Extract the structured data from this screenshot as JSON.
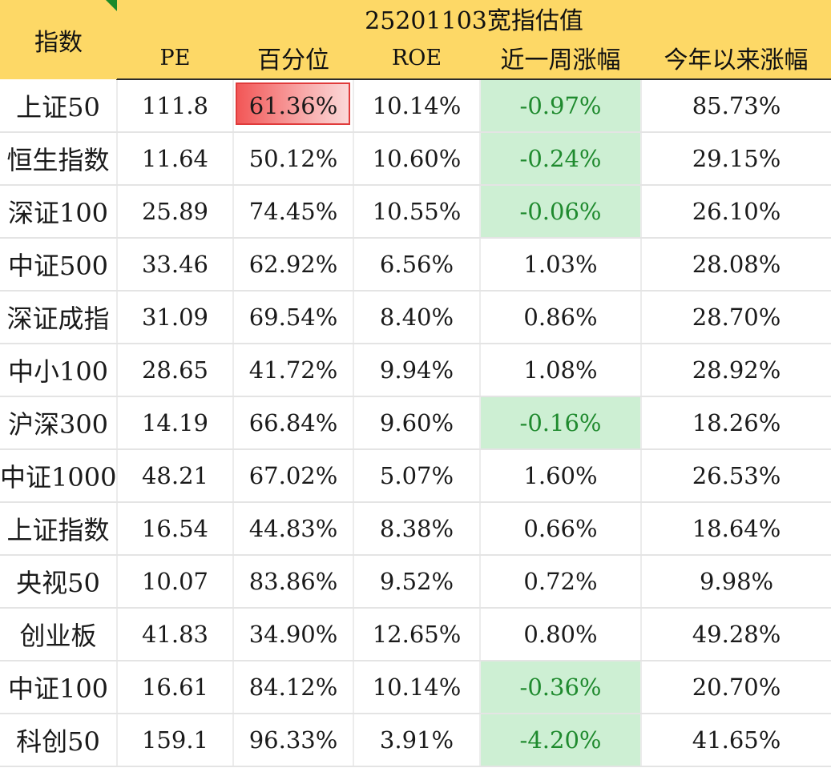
{
  "header": {
    "index_label": "指数",
    "title": "25201103宽指估值",
    "columns": [
      "PE",
      "百分位",
      "ROE",
      "近一周涨幅",
      "今年以来涨幅"
    ]
  },
  "colors": {
    "header_bg": "#fdd866",
    "negative_bg": "#cdefd3",
    "negative_text": "#1f8a2e",
    "highlight": "#f25757"
  },
  "rows": [
    {
      "name": "上证50",
      "pe": "111.8",
      "pct": "61.36%",
      "roe": "10.14%",
      "week": "-0.97%",
      "ytd": "85.73%",
      "week_negative": true,
      "pct_highlight": true
    },
    {
      "name": "恒生指数",
      "pe": "11.64",
      "pct": "50.12%",
      "roe": "10.60%",
      "week": "-0.24%",
      "ytd": "29.15%",
      "week_negative": true
    },
    {
      "name": "深证100",
      "pe": "25.89",
      "pct": "74.45%",
      "roe": "10.55%",
      "week": "-0.06%",
      "ytd": "26.10%",
      "week_negative": true
    },
    {
      "name": "中证500",
      "pe": "33.46",
      "pct": "62.92%",
      "roe": "6.56%",
      "week": "1.03%",
      "ytd": "28.08%"
    },
    {
      "name": "深证成指",
      "pe": "31.09",
      "pct": "69.54%",
      "roe": "8.40%",
      "week": "0.86%",
      "ytd": "28.70%"
    },
    {
      "name": "中小100",
      "pe": "28.65",
      "pct": "41.72%",
      "roe": "9.94%",
      "week": "1.08%",
      "ytd": "28.92%"
    },
    {
      "name": "沪深300",
      "pe": "14.19",
      "pct": "66.84%",
      "roe": "9.60%",
      "week": "-0.16%",
      "ytd": "18.26%",
      "week_negative": true
    },
    {
      "name": "中证1000",
      "pe": "48.21",
      "pct": "67.02%",
      "roe": "5.07%",
      "week": "1.60%",
      "ytd": "26.53%"
    },
    {
      "name": "上证指数",
      "pe": "16.54",
      "pct": "44.83%",
      "roe": "8.38%",
      "week": "0.66%",
      "ytd": "18.64%"
    },
    {
      "name": "央视50",
      "pe": "10.07",
      "pct": "83.86%",
      "roe": "9.52%",
      "week": "0.72%",
      "ytd": "9.98%"
    },
    {
      "name": "创业板",
      "pe": "41.83",
      "pct": "34.90%",
      "roe": "12.65%",
      "week": "0.80%",
      "ytd": "49.28%"
    },
    {
      "name": "中证100",
      "pe": "16.61",
      "pct": "84.12%",
      "roe": "10.14%",
      "week": "-0.36%",
      "ytd": "20.70%",
      "week_negative": true
    },
    {
      "name": "科创50",
      "pe": "159.1",
      "pct": "96.33%",
      "roe": "3.91%",
      "week": "-4.20%",
      "ytd": "41.65%",
      "week_negative": true
    }
  ]
}
